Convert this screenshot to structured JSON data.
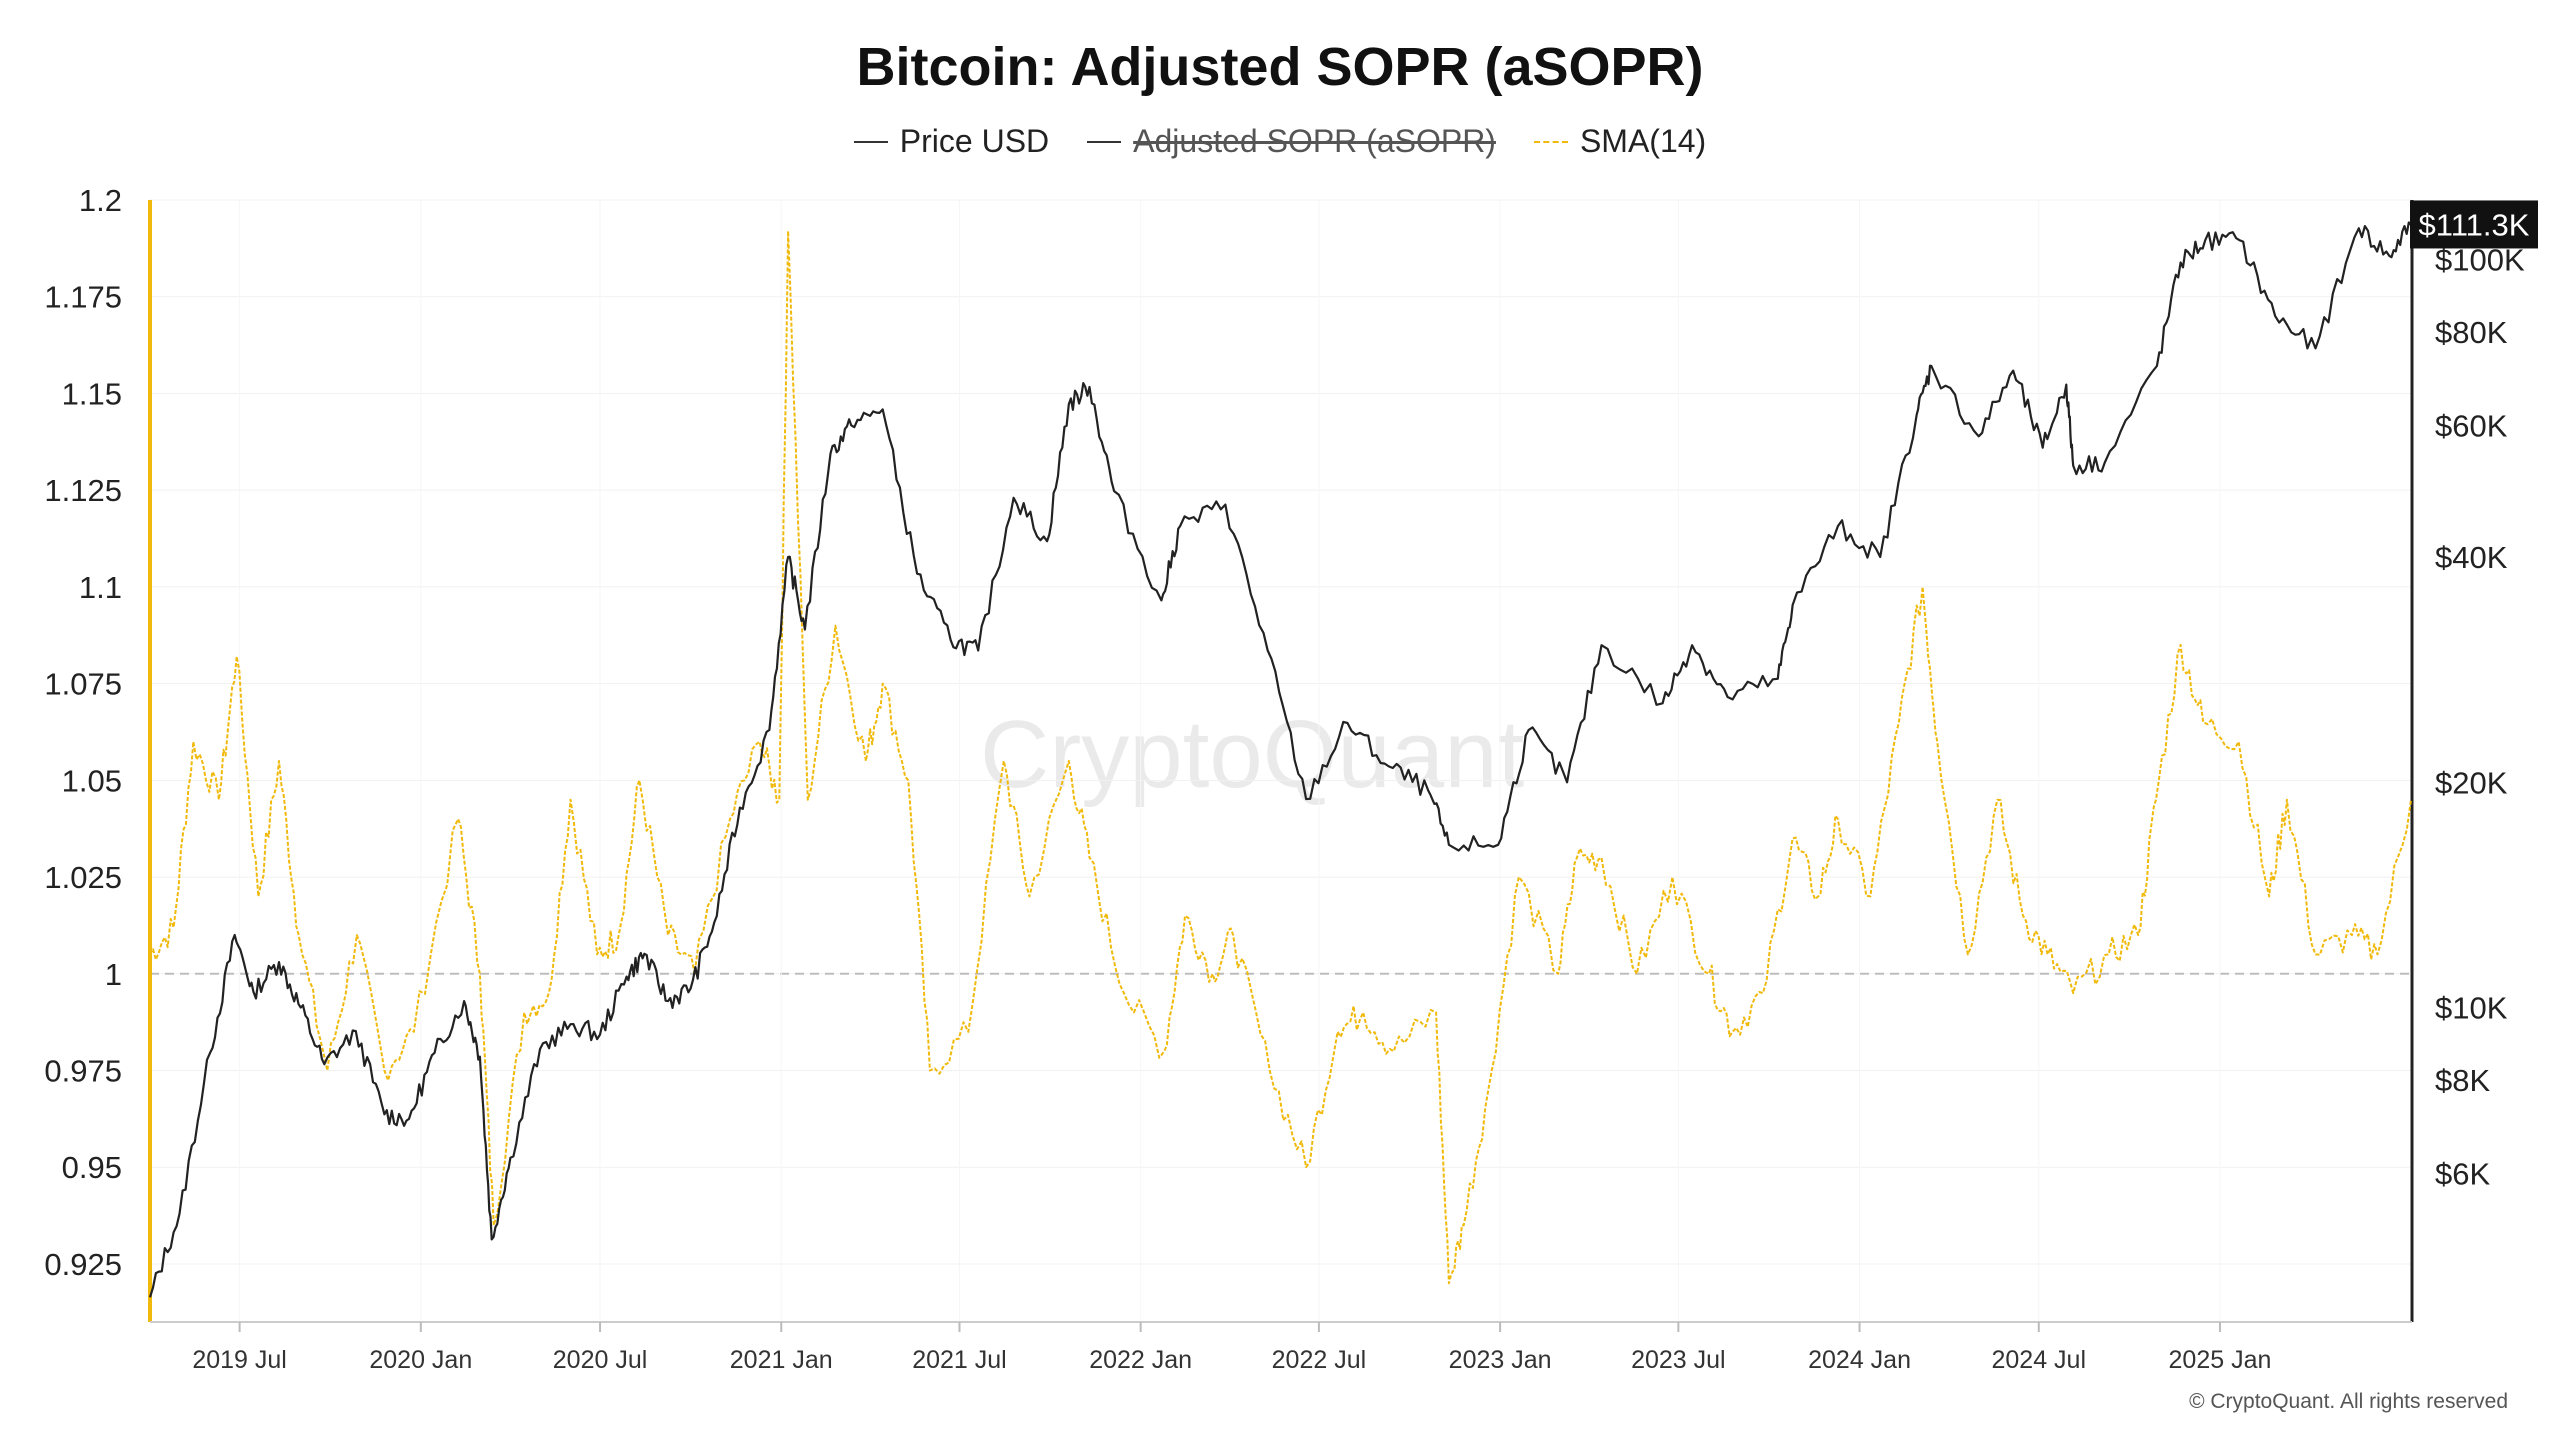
{
  "title": "Bitcoin: Adjusted SOPR (aSOPR)",
  "legend": [
    {
      "label": "Price USD",
      "color": "#333333",
      "style": "solid",
      "hidden": false
    },
    {
      "label": "Adjusted SOPR (aSOPR)",
      "color": "#333333",
      "style": "solid",
      "hidden": true
    },
    {
      "label": "SMA(14)",
      "color": "#f0b90b",
      "style": "dashed",
      "hidden": false
    }
  ],
  "watermark": "CryptoQuant",
  "copyright": "© CryptoQuant. All rights reserved",
  "chart_data": {
    "type": "line",
    "title": "Bitcoin: Adjusted SOPR (aSOPR)",
    "x_range": [
      "2019-04-01",
      "2025-07-15"
    ],
    "x_ticks": [
      "2019 Jul",
      "2020 Jan",
      "2020 Jul",
      "2021 Jan",
      "2021 Jul",
      "2022 Jan",
      "2022 Jul",
      "2023 Jan",
      "2023 Jul",
      "2024 Jan",
      "2024 Jul",
      "2025 Jan"
    ],
    "left_axis": {
      "ylim": [
        0.91,
        1.2
      ],
      "ticks": [
        "1.2",
        "1.175",
        "1.15",
        "1.125",
        "1.1",
        "1.075",
        "1.05",
        "1.025",
        "1",
        "0.975",
        "0.95",
        "0.925"
      ],
      "reference_line": 1,
      "color": "#f0b90b"
    },
    "right_axis": {
      "scale": "log",
      "ylim": [
        3800,
        120000
      ],
      "ticks": [
        "$100K",
        "$80K",
        "$60K",
        "$40K",
        "$20K",
        "$10K",
        "$8K",
        "$6K"
      ],
      "current_value_label": "$111.3K"
    },
    "grid": true,
    "series": [
      {
        "name": "Price USD",
        "axis": "right",
        "color": "#222222",
        "points": [
          [
            "2019-04-01",
            4100
          ],
          [
            "2019-05-01",
            5300
          ],
          [
            "2019-06-01",
            8700
          ],
          [
            "2019-06-26",
            12500
          ],
          [
            "2019-07-15",
            10500
          ],
          [
            "2019-08-10",
            11500
          ],
          [
            "2019-09-01",
            10000
          ],
          [
            "2019-09-25",
            8400
          ],
          [
            "2019-10-27",
            9300
          ],
          [
            "2019-11-25",
            7200
          ],
          [
            "2019-12-20",
            7100
          ],
          [
            "2020-01-15",
            8700
          ],
          [
            "2020-02-14",
            10200
          ],
          [
            "2020-03-01",
            8600
          ],
          [
            "2020-03-13",
            4900
          ],
          [
            "2020-04-01",
            6300
          ],
          [
            "2020-05-01",
            8800
          ],
          [
            "2020-06-01",
            9500
          ],
          [
            "2020-07-01",
            9200
          ],
          [
            "2020-07-28",
            11000
          ],
          [
            "2020-08-15",
            11800
          ],
          [
            "2020-09-08",
            10200
          ],
          [
            "2020-10-01",
            10600
          ],
          [
            "2020-10-25",
            13000
          ],
          [
            "2020-11-20",
            18500
          ],
          [
            "2020-12-20",
            23500
          ],
          [
            "2021-01-08",
            40000
          ],
          [
            "2021-01-25",
            32000
          ],
          [
            "2021-02-20",
            55000
          ],
          [
            "2021-03-13",
            60000
          ],
          [
            "2021-04-14",
            63000
          ],
          [
            "2021-05-19",
            38000
          ],
          [
            "2021-06-22",
            31000
          ],
          [
            "2021-07-20",
            30000
          ],
          [
            "2021-08-25",
            48000
          ],
          [
            "2021-09-28",
            42000
          ],
          [
            "2021-10-20",
            64000
          ],
          [
            "2021-11-10",
            67500
          ],
          [
            "2021-12-05",
            49000
          ],
          [
            "2022-01-22",
            35000
          ],
          [
            "2022-02-10",
            44000
          ],
          [
            "2022-03-28",
            47000
          ],
          [
            "2022-05-10",
            30000
          ],
          [
            "2022-06-18",
            19000
          ],
          [
            "2022-07-30",
            24000
          ],
          [
            "2022-09-10",
            21000
          ],
          [
            "2022-10-20",
            19500
          ],
          [
            "2022-11-10",
            16500
          ],
          [
            "2022-12-30",
            16500
          ],
          [
            "2023-01-30",
            23500
          ],
          [
            "2023-03-10",
            20000
          ],
          [
            "2023-04-14",
            30500
          ],
          [
            "2023-06-15",
            25500
          ],
          [
            "2023-07-15",
            30500
          ],
          [
            "2023-08-20",
            26000
          ],
          [
            "2023-10-10",
            27500
          ],
          [
            "2023-10-25",
            34500
          ],
          [
            "2023-12-10",
            44000
          ],
          [
            "2024-01-22",
            40000
          ],
          [
            "2024-02-28",
            62000
          ],
          [
            "2024-03-14",
            72000
          ],
          [
            "2024-05-01",
            58000
          ],
          [
            "2024-06-05",
            71000
          ],
          [
            "2024-07-05",
            56000
          ],
          [
            "2024-07-29",
            68000
          ],
          [
            "2024-08-05",
            53000
          ],
          [
            "2024-09-06",
            53500
          ],
          [
            "2024-10-29",
            72000
          ],
          [
            "2024-11-22",
            99000
          ],
          [
            "2024-12-17",
            106000
          ],
          [
            "2025-01-21",
            106000
          ],
          [
            "2025-02-26",
            84000
          ],
          [
            "2025-04-08",
            76000
          ],
          [
            "2025-05-22",
            110000
          ],
          [
            "2025-06-22",
            101000
          ],
          [
            "2025-07-14",
            111300
          ]
        ]
      },
      {
        "name": "SMA(14)",
        "axis": "left",
        "color": "#f0b90b",
        "points": [
          [
            "2019-04-01",
            1.005
          ],
          [
            "2019-04-25",
            1.012
          ],
          [
            "2019-05-15",
            1.06
          ],
          [
            "2019-06-10",
            1.045
          ],
          [
            "2019-06-28",
            1.082
          ],
          [
            "2019-07-20",
            1.02
          ],
          [
            "2019-08-10",
            1.055
          ],
          [
            "2019-08-30",
            1.01
          ],
          [
            "2019-09-28",
            0.975
          ],
          [
            "2019-10-28",
            1.01
          ],
          [
            "2019-11-25",
            0.975
          ],
          [
            "2019-12-25",
            0.985
          ],
          [
            "2020-02-08",
            1.04
          ],
          [
            "2020-03-01",
            1.0
          ],
          [
            "2020-03-15",
            0.935
          ],
          [
            "2020-04-15",
            0.99
          ],
          [
            "2020-05-10",
            0.995
          ],
          [
            "2020-06-01",
            1.045
          ],
          [
            "2020-06-28",
            1.005
          ],
          [
            "2020-07-20",
            1.01
          ],
          [
            "2020-08-10",
            1.05
          ],
          [
            "2020-09-08",
            1.01
          ],
          [
            "2020-10-05",
            1.0
          ],
          [
            "2020-11-10",
            1.04
          ],
          [
            "2020-12-10",
            1.06
          ],
          [
            "2020-12-30",
            1.045
          ],
          [
            "2021-01-08",
            1.192
          ],
          [
            "2021-01-28",
            1.045
          ],
          [
            "2021-02-25",
            1.09
          ],
          [
            "2021-03-28",
            1.055
          ],
          [
            "2021-04-14",
            1.075
          ],
          [
            "2021-05-10",
            1.05
          ],
          [
            "2021-06-01",
            0.975
          ],
          [
            "2021-07-10",
            0.985
          ],
          [
            "2021-08-15",
            1.055
          ],
          [
            "2021-09-10",
            1.02
          ],
          [
            "2021-10-20",
            1.055
          ],
          [
            "2021-11-10",
            1.03
          ],
          [
            "2021-12-15",
            0.995
          ],
          [
            "2022-01-25",
            0.98
          ],
          [
            "2022-02-15",
            1.015
          ],
          [
            "2022-03-15",
            1.0
          ],
          [
            "2022-04-05",
            1.01
          ],
          [
            "2022-05-12",
            0.975
          ],
          [
            "2022-06-18",
            0.95
          ],
          [
            "2022-07-20",
            0.985
          ],
          [
            "2022-08-15",
            0.99
          ],
          [
            "2022-09-15",
            0.98
          ],
          [
            "2022-10-28",
            0.99
          ],
          [
            "2022-11-10",
            0.92
          ],
          [
            "2022-11-25",
            0.935
          ],
          [
            "2022-12-20",
            0.97
          ],
          [
            "2023-01-20",
            1.025
          ],
          [
            "2023-03-01",
            1.0
          ],
          [
            "2023-03-20",
            1.03
          ],
          [
            "2023-04-14",
            1.03
          ],
          [
            "2023-05-20",
            1.0
          ],
          [
            "2023-06-25",
            1.025
          ],
          [
            "2023-08-01",
            1.0
          ],
          [
            "2023-08-25",
            0.985
          ],
          [
            "2023-09-25",
            0.995
          ],
          [
            "2023-10-25",
            1.035
          ],
          [
            "2023-11-20",
            1.02
          ],
          [
            "2023-12-10",
            1.04
          ],
          [
            "2024-01-12",
            1.02
          ],
          [
            "2024-02-10",
            1.065
          ],
          [
            "2024-03-05",
            1.1
          ],
          [
            "2024-03-20",
            1.06
          ],
          [
            "2024-04-20",
            1.005
          ],
          [
            "2024-05-20",
            1.045
          ],
          [
            "2024-06-15",
            1.015
          ],
          [
            "2024-07-10",
            1.005
          ],
          [
            "2024-08-05",
            0.995
          ],
          [
            "2024-09-10",
            1.005
          ],
          [
            "2024-10-10",
            1.01
          ],
          [
            "2024-10-28",
            1.045
          ],
          [
            "2024-11-22",
            1.085
          ],
          [
            "2024-12-15",
            1.065
          ],
          [
            "2025-01-20",
            1.06
          ],
          [
            "2025-02-20",
            1.02
          ],
          [
            "2025-03-10",
            1.045
          ],
          [
            "2025-04-08",
            1.005
          ],
          [
            "2025-05-15",
            1.01
          ],
          [
            "2025-06-10",
            1.005
          ],
          [
            "2025-07-14",
            1.045
          ]
        ]
      }
    ]
  }
}
